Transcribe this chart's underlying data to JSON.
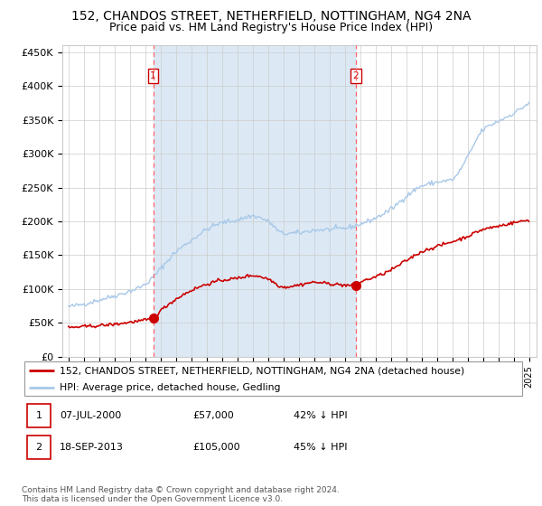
{
  "title": "152, CHANDOS STREET, NETHERFIELD, NOTTINGHAM, NG4 2NA",
  "subtitle": "Price paid vs. HM Land Registry's House Price Index (HPI)",
  "title_fontsize": 10,
  "subtitle_fontsize": 9,
  "ylabel_ticks": [
    "£0",
    "£50K",
    "£100K",
    "£150K",
    "£200K",
    "£250K",
    "£300K",
    "£350K",
    "£400K",
    "£450K"
  ],
  "ytick_values": [
    0,
    50000,
    100000,
    150000,
    200000,
    250000,
    300000,
    350000,
    400000,
    450000
  ],
  "ylim": [
    0,
    460000
  ],
  "year_start": 1995,
  "year_end": 2025,
  "hpi_color": "#A8C8E8",
  "price_color": "#CC0000",
  "bg_shaded_color": "#DCE9F5",
  "dashed_line_color": "#FF6666",
  "grid_color": "#CCCCCC",
  "purchase1_year": 2000.52,
  "purchase1_price": 57000,
  "purchase1_label": "1",
  "purchase2_year": 2013.71,
  "purchase2_price": 105000,
  "purchase2_label": "2",
  "legend_line1": "152, CHANDOS STREET, NETHERFIELD, NOTTINGHAM, NG4 2NA (detached house)",
  "legend_line2": "HPI: Average price, detached house, Gedling",
  "note1_label": "1",
  "note1_date": "07-JUL-2000",
  "note1_price": "£57,000",
  "note1_hpi": "42% ↓ HPI",
  "note2_label": "2",
  "note2_date": "18-SEP-2013",
  "note2_price": "£105,000",
  "note2_hpi": "45% ↓ HPI",
  "footer": "Contains HM Land Registry data © Crown copyright and database right 2024.\nThis data is licensed under the Open Government Licence v3.0."
}
